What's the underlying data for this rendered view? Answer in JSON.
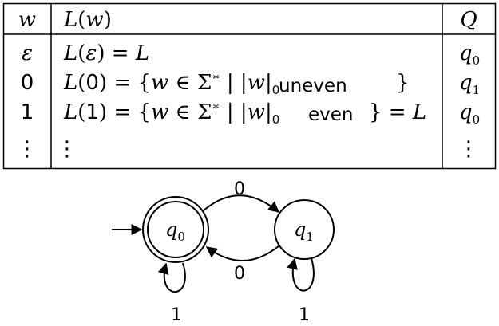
{
  "table": {
    "headers": {
      "w": "w",
      "L_prefix": "L",
      "L_open": "(",
      "L_var": "w",
      "L_close": ")",
      "Q": "Q"
    },
    "rows": [
      {
        "w": "ε",
        "expr": {
          "L": "L",
          "open": "(",
          "arg": "ε",
          "close": ")",
          "rest_eq": " = ",
          "rest_L": "L"
        },
        "q": "q",
        "q_sub": "0"
      },
      {
        "w": "0",
        "expr": {
          "L": "L",
          "open": "(",
          "arg": "0",
          "close": ")",
          "eq": " = {",
          "var": "w",
          "in": " ∈ Σ",
          "star": "∗",
          "bar1": " | |",
          "var2": "w",
          "bar2": "|",
          "sub": "0",
          "word": "uneven",
          "closebrace": "}"
        },
        "q": "q",
        "q_sub": "1"
      },
      {
        "w": "1",
        "expr": {
          "L": "L",
          "open": "(",
          "arg": "1",
          "close": ")",
          "eq": " = {",
          "var": "w",
          "in": " ∈ Σ",
          "star": "∗",
          "bar1": " | |",
          "var2": "w",
          "bar2": "|",
          "sub": "0",
          "word": "even",
          "closebrace": "}",
          "tail_eq": " = ",
          "tail_L": "L"
        },
        "q": "q",
        "q_sub": "0"
      },
      {
        "w": "⋮",
        "expr_dots": "⋮",
        "q": "⋮"
      }
    ]
  },
  "automaton": {
    "states": [
      {
        "name": "q",
        "sub": "0",
        "accepting": true,
        "initial": true
      },
      {
        "name": "q",
        "sub": "1",
        "accepting": false,
        "initial": false
      }
    ],
    "transitions": [
      {
        "from": "q0",
        "to": "q1",
        "label": "0"
      },
      {
        "from": "q1",
        "to": "q0",
        "label": "0"
      },
      {
        "from": "q0",
        "to": "q0",
        "label": "1"
      },
      {
        "from": "q1",
        "to": "q1",
        "label": "1"
      }
    ]
  }
}
